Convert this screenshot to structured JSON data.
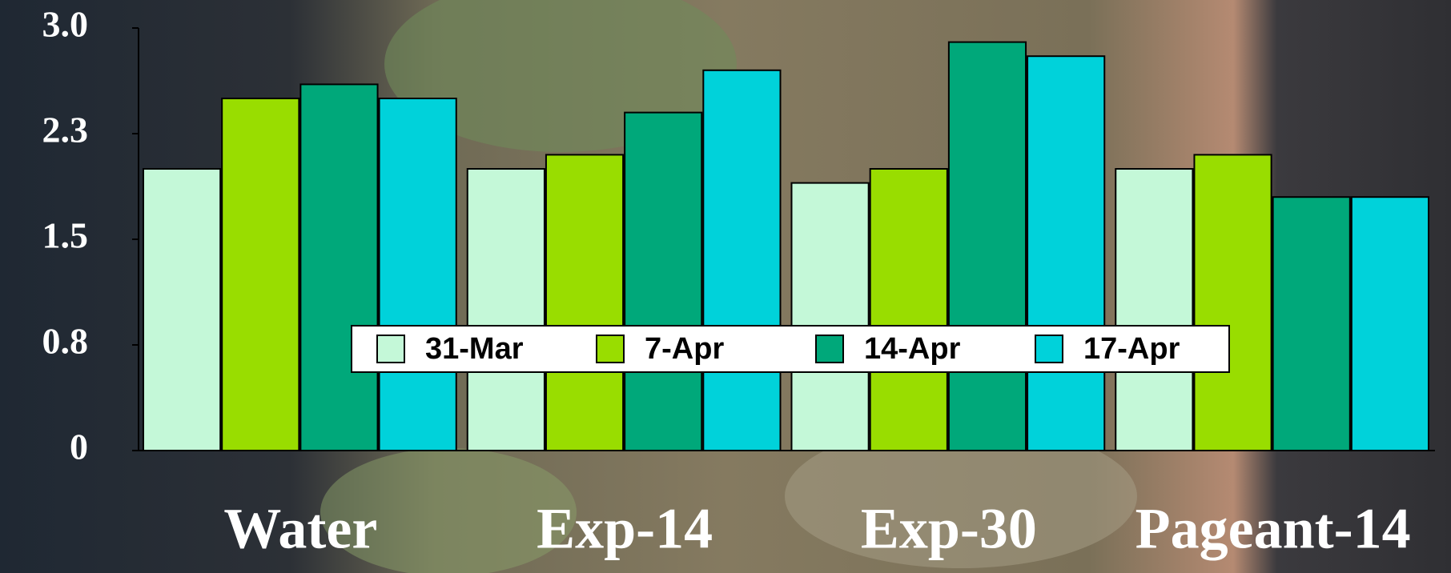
{
  "chart_data": {
    "type": "bar",
    "categories": [
      "Water",
      "Exp-14",
      "Exp-30",
      "Pageant-14"
    ],
    "series": [
      {
        "name": "31-Mar",
        "color": "#c4f8d8",
        "values": [
          2.0,
          2.0,
          1.9,
          2.0
        ]
      },
      {
        "name": "7-Apr",
        "color": "#99dd00",
        "values": [
          2.5,
          2.1,
          2.0,
          2.1
        ]
      },
      {
        "name": "14-Apr",
        "color": "#00a87a",
        "values": [
          2.6,
          2.4,
          2.9,
          1.8
        ]
      },
      {
        "name": "17-Apr",
        "color": "#00d2da",
        "values": [
          2.5,
          2.7,
          2.8,
          1.8
        ]
      }
    ],
    "ylim": [
      0,
      3
    ],
    "yticks": [
      0,
      {
        "value": 0.75,
        "label": "0.8"
      },
      1.5,
      {
        "value": 2.25,
        "label": "2.3"
      },
      {
        "value": 3,
        "label": "3.0"
      }
    ],
    "grid": false,
    "legend": "center"
  }
}
